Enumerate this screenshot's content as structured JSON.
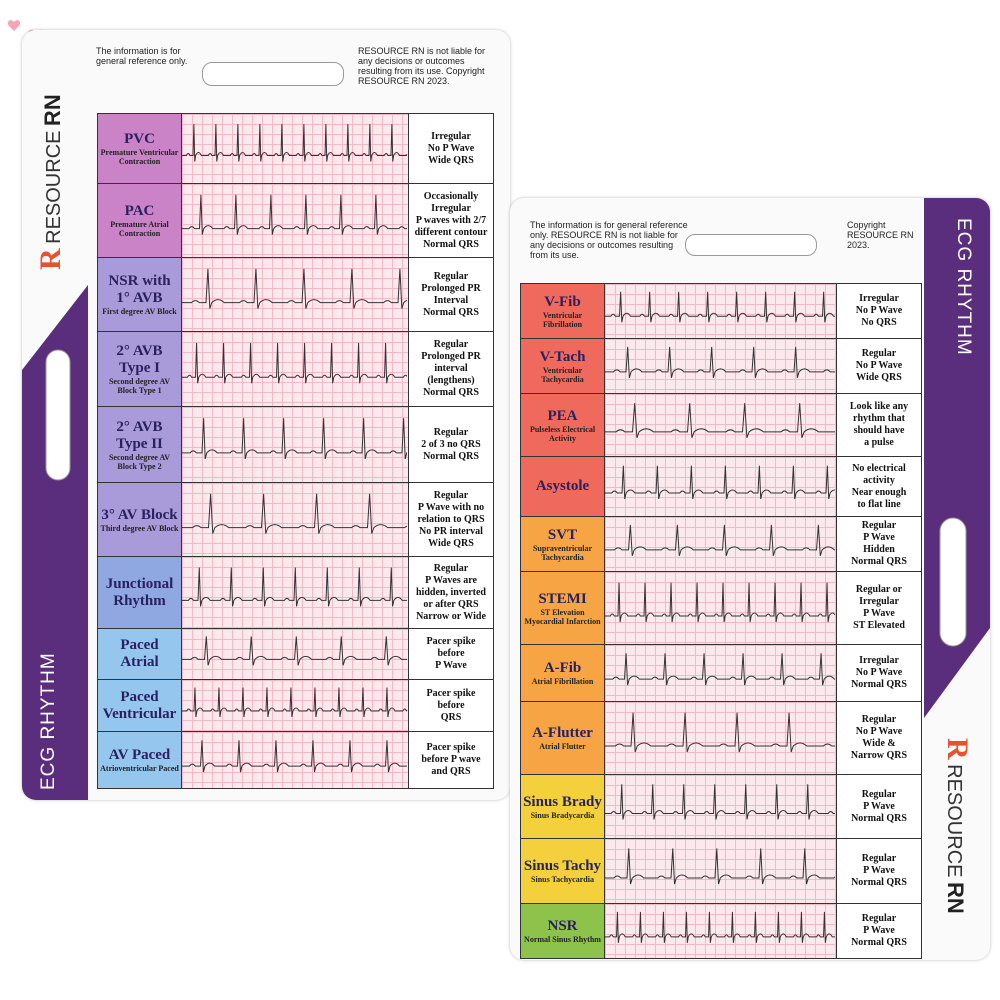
{
  "cards": [
    {
      "disclaimer": "The information is for general reference only.",
      "legal": "RESOURCE RN is not liable for any decisions or outcomes resulting from its use. Copyright RESOURCE RN 2023.",
      "brand": {
        "mark": "R",
        "name": "RESOURCE",
        "suffix": "RN"
      },
      "side_label": "ECG RHYTHM",
      "rows": [
        {
          "name": "PVC",
          "subtitle": "Premature Ventricular Contraction",
          "color": "#c983c6",
          "description": [
            "Irregular",
            "No P Wave",
            "Wide QRS"
          ]
        },
        {
          "name": "PAC",
          "subtitle": "Premature Atrial Contraction",
          "color": "#c983c6",
          "description": [
            "Occasionally",
            "Irregular",
            "P waves with 2/7",
            "different contour",
            "Normal QRS"
          ]
        },
        {
          "name": "NSR with 1° AVB",
          "subtitle": "First degree AV Block",
          "color": "#a99ad9",
          "description": [
            "Regular",
            "Prolonged PR",
            "Interval",
            "Normal QRS"
          ]
        },
        {
          "name": "2° AVB Type I",
          "subtitle": "Second degree AV Block Type 1",
          "color": "#a99ad9",
          "description": [
            "Regular",
            "Prolonged PR",
            "interval",
            "(lengthens)",
            "Normal QRS"
          ]
        },
        {
          "name": "2° AVB Type II",
          "subtitle": "Second degree AV Block Type 2",
          "color": "#a99ad9",
          "description": [
            "Regular",
            "2 of 3 no QRS",
            "Normal QRS"
          ]
        },
        {
          "name": "3° AV Block",
          "subtitle": "Third degree AV Block",
          "color": "#a99ad9",
          "description": [
            "Regular",
            "P Wave with no",
            "relation to QRS",
            "No PR interval",
            "Wide QRS"
          ]
        },
        {
          "name": "Junctional Rhythm",
          "color": "#90a8e2",
          "description": [
            "Regular",
            "P Waves are",
            "hidden, inverted",
            "or after QRS",
            "Narrow or Wide"
          ]
        },
        {
          "name": "Paced Atrial",
          "color": "#95c6ee",
          "description": [
            "Pacer spike",
            "before",
            "P Wave"
          ]
        },
        {
          "name": "Paced Ventricular",
          "color": "#95c6ee",
          "description": [
            "Pacer spike",
            "before",
            "QRS"
          ]
        },
        {
          "name": "AV Paced",
          "subtitle": "Atrioventricular Paced",
          "color": "#95c6ee",
          "description": [
            "Pacer spike",
            "before P wave",
            "and QRS"
          ]
        }
      ]
    },
    {
      "disclaimer": "The information is for general reference only. RESOURCE RN is not liable for any decisions or outcomes resulting from its use.",
      "legal": "Copyright RESOURCE RN 2023.",
      "brand": {
        "mark": "R",
        "name": "RESOURCE",
        "suffix": "RN"
      },
      "side_label": "ECG RHYTHM",
      "rows": [
        {
          "name": "V-Fib",
          "subtitle": "Ventricular Fibrillation",
          "color": "#ef6a5c",
          "description": [
            "Irregular",
            "No P Wave",
            "No QRS"
          ]
        },
        {
          "name": "V-Tach",
          "subtitle": "Ventricular Tachycardia",
          "color": "#ef6a5c",
          "description": [
            "Regular",
            "No P Wave",
            "Wide QRS"
          ]
        },
        {
          "name": "PEA",
          "subtitle": "Pulseless Electrical Activity",
          "color": "#ef6a5c",
          "description": [
            "Look like any",
            "rhythm that",
            "should have",
            "a pulse"
          ]
        },
        {
          "name": "Asystole",
          "color": "#ef6a5c",
          "description": [
            "No electrical",
            "activity",
            "Near enough",
            "to flat line"
          ]
        },
        {
          "name": "SVT",
          "subtitle": "Supraventricular Tachycardia",
          "color": "#f6a444",
          "description": [
            "Regular",
            "P Wave",
            "Hidden",
            "Normal QRS"
          ]
        },
        {
          "name": "STEMI",
          "subtitle": "ST Elevation Myocardial Infarction",
          "color": "#f6a444",
          "description": [
            "Regular or",
            "Irregular",
            "P Wave",
            "ST Elevated"
          ]
        },
        {
          "name": "A-Fib",
          "subtitle": "Atrial Fibrillation",
          "color": "#f6a444",
          "description": [
            "Irregular",
            "No P Wave",
            "Normal QRS"
          ]
        },
        {
          "name": "A-Flutter",
          "subtitle": "Atrial Flutter",
          "color": "#f6a444",
          "description": [
            "Regular",
            "No P Wave",
            "Wide &",
            "Narrow QRS"
          ]
        },
        {
          "name": "Sinus Brady",
          "subtitle": "Sinus Bradycardia",
          "color": "#f4d03c",
          "description": [
            "Regular",
            "P Wave",
            "Normal QRS"
          ]
        },
        {
          "name": "Sinus Tachy",
          "subtitle": "Sinus Tachycardia",
          "color": "#f4d03c",
          "description": [
            "Regular",
            "P Wave",
            "Normal QRS"
          ]
        },
        {
          "name": "NSR",
          "subtitle": "Normal Sinus Rhythm",
          "color": "#8dc34b",
          "description": [
            "Regular",
            "P Wave",
            "Normal QRS"
          ]
        }
      ]
    }
  ]
}
